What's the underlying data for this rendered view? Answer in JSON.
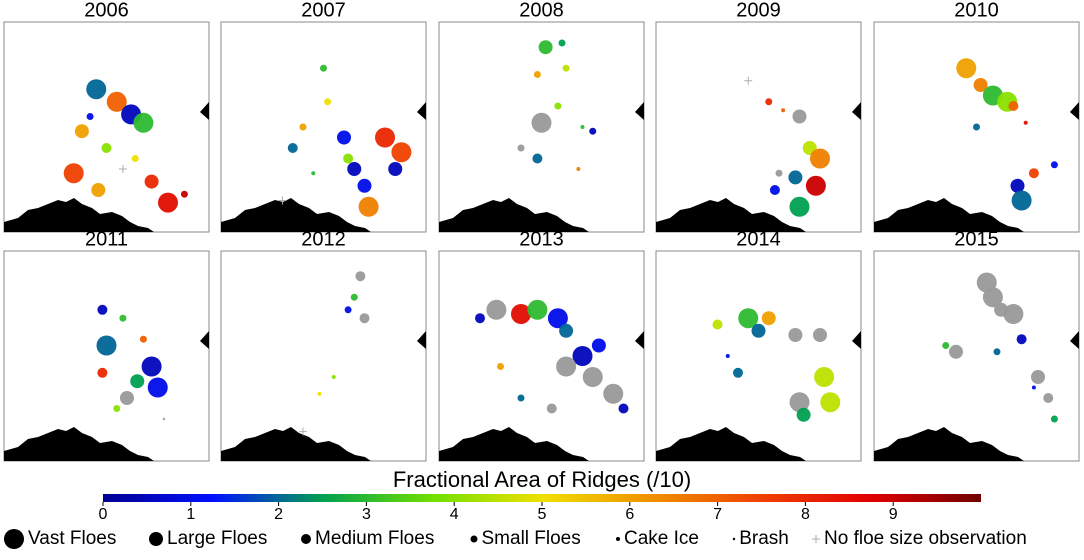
{
  "chart_data": {
    "type": "scatter-map",
    "xlim": [
      0,
      100
    ],
    "ylim": [
      0,
      100
    ],
    "colorbar": {
      "title": "Fractional Area of Ridges (/10)",
      "lim": [
        0,
        10
      ],
      "ticks": [
        0,
        1,
        2,
        3,
        4,
        5,
        6,
        7,
        8,
        9
      ],
      "colors": [
        "#000090",
        "#0010ff",
        "#00a050",
        "#70e000",
        "#f0e000",
        "#f09000",
        "#f04000",
        "#e00000",
        "#700000"
      ]
    },
    "no_ridge_color": "#999999",
    "legend": [
      "Vast Floes",
      "Large Floes",
      "Medium Floes",
      "Small Floes",
      "Cake Ice",
      "Brash",
      "No floe size observation"
    ],
    "panels": [
      {
        "title": "2006",
        "x": [
          45,
          55,
          62,
          68,
          38,
          34,
          46,
          72,
          80,
          50,
          64,
          42,
          88,
          58
        ],
        "y": [
          68,
          62,
          56,
          52,
          48,
          28,
          20,
          24,
          14,
          40,
          35,
          55,
          18,
          30
        ],
        "ridges": [
          2,
          7,
          0.5,
          3,
          6,
          7.5,
          6,
          8,
          8.5,
          4,
          5,
          1,
          9,
          null
        ],
        "size": [
          0,
          0,
          0,
          0,
          1,
          0,
          1,
          1,
          0,
          2,
          3,
          3,
          3,
          6
        ]
      },
      {
        "title": "2007",
        "x": [
          50,
          52,
          40,
          35,
          60,
          65,
          80,
          88,
          85,
          70,
          72,
          62,
          45,
          30
        ],
        "y": [
          78,
          62,
          50,
          40,
          45,
          30,
          45,
          38,
          30,
          22,
          12,
          35,
          28,
          15
        ],
        "ridges": [
          3,
          5,
          6,
          2,
          1,
          0.5,
          8,
          7.5,
          0.5,
          1,
          6.5,
          4,
          3,
          null
        ],
        "size": [
          3,
          3,
          3,
          2,
          1,
          1,
          0,
          0,
          1,
          1,
          0,
          2,
          4,
          6
        ]
      },
      {
        "title": "2008",
        "x": [
          52,
          60,
          48,
          58,
          62,
          50,
          40,
          70,
          75,
          48,
          68
        ],
        "y": [
          88,
          90,
          75,
          60,
          78,
          52,
          40,
          50,
          48,
          35,
          30
        ],
        "ridges": [
          3,
          2.5,
          6,
          4,
          4.5,
          null,
          null,
          3,
          0.5,
          2,
          6.5
        ],
        "size": [
          1,
          3,
          3,
          3,
          3,
          0,
          3,
          4,
          3,
          2,
          4
        ]
      },
      {
        "title": "2009",
        "x": [
          45,
          55,
          62,
          70,
          75,
          80,
          78,
          68,
          58,
          70,
          60
        ],
        "y": [
          72,
          62,
          58,
          55,
          40,
          35,
          22,
          26,
          20,
          12,
          28
        ],
        "ridges": [
          null,
          8,
          7,
          null,
          4.5,
          6.5,
          9,
          2,
          1,
          2.5,
          null
        ],
        "size": [
          6,
          3,
          4,
          1,
          1,
          0,
          0,
          1,
          2,
          0,
          3
        ]
      },
      {
        "title": "2010",
        "x": [
          45,
          52,
          58,
          65,
          68,
          50,
          74,
          88,
          78,
          70,
          72
        ],
        "y": [
          78,
          70,
          65,
          62,
          60,
          50,
          52,
          32,
          28,
          22,
          15
        ],
        "ridges": [
          6,
          6.5,
          3,
          4,
          7,
          2,
          8.5,
          1,
          7.5,
          0.5,
          2
        ],
        "size": [
          0,
          1,
          0,
          0,
          2,
          3,
          4,
          3,
          2,
          1,
          0
        ]
      },
      {
        "title": "2011",
        "x": [
          48,
          58,
          50,
          68,
          72,
          65,
          75,
          60,
          55,
          78,
          48
        ],
        "y": [
          72,
          68,
          55,
          58,
          45,
          38,
          35,
          30,
          25,
          20,
          42
        ],
        "ridges": [
          0.5,
          3,
          2,
          7,
          0.5,
          2.5,
          1,
          null,
          4,
          null,
          8
        ],
        "size": [
          2,
          3,
          0,
          3,
          0,
          1,
          0,
          1,
          3,
          5,
          2
        ]
      },
      {
        "title": "2012",
        "x": [
          68,
          65,
          62,
          70,
          55,
          48,
          40
        ],
        "y": [
          88,
          78,
          72,
          68,
          40,
          32,
          14
        ],
        "ridges": [
          null,
          3,
          1,
          null,
          4,
          5,
          null
        ],
        "size": [
          2,
          3,
          3,
          2,
          4,
          4,
          6
        ]
      },
      {
        "title": "2013",
        "x": [
          20,
          28,
          40,
          48,
          58,
          62,
          70,
          75,
          85,
          90,
          30,
          40,
          55,
          62,
          78
        ],
        "y": [
          68,
          72,
          70,
          72,
          68,
          62,
          50,
          40,
          32,
          25,
          45,
          30,
          25,
          45,
          55
        ],
        "ridges": [
          0.5,
          null,
          8.5,
          3,
          1,
          2,
          0.5,
          null,
          null,
          0.5,
          6,
          2,
          null,
          null,
          1
        ],
        "size": [
          2,
          0,
          0,
          0,
          0,
          1,
          0,
          0,
          0,
          2,
          3,
          3,
          2,
          0,
          1
        ]
      },
      {
        "title": "2014",
        "x": [
          30,
          45,
          50,
          55,
          68,
          80,
          82,
          70,
          72,
          85,
          40,
          35
        ],
        "y": [
          65,
          68,
          62,
          68,
          60,
          60,
          40,
          28,
          22,
          28,
          42,
          50
        ],
        "ridges": [
          4.5,
          3,
          2,
          6,
          null,
          null,
          4.5,
          null,
          2.5,
          4.5,
          2,
          1
        ],
        "size": [
          2,
          0,
          1,
          1,
          1,
          1,
          0,
          0,
          1,
          0,
          2,
          4
        ]
      },
      {
        "title": "2015",
        "x": [
          55,
          58,
          62,
          68,
          72,
          35,
          40,
          60,
          80,
          85,
          88,
          78
        ],
        "y": [
          85,
          78,
          72,
          70,
          58,
          55,
          52,
          52,
          40,
          30,
          20,
          35
        ],
        "ridges": [
          null,
          null,
          null,
          null,
          0.5,
          3,
          null,
          2,
          null,
          null,
          2.5,
          1
        ],
        "size": [
          0,
          0,
          1,
          0,
          2,
          3,
          1,
          3,
          1,
          2,
          3,
          4
        ]
      }
    ]
  }
}
